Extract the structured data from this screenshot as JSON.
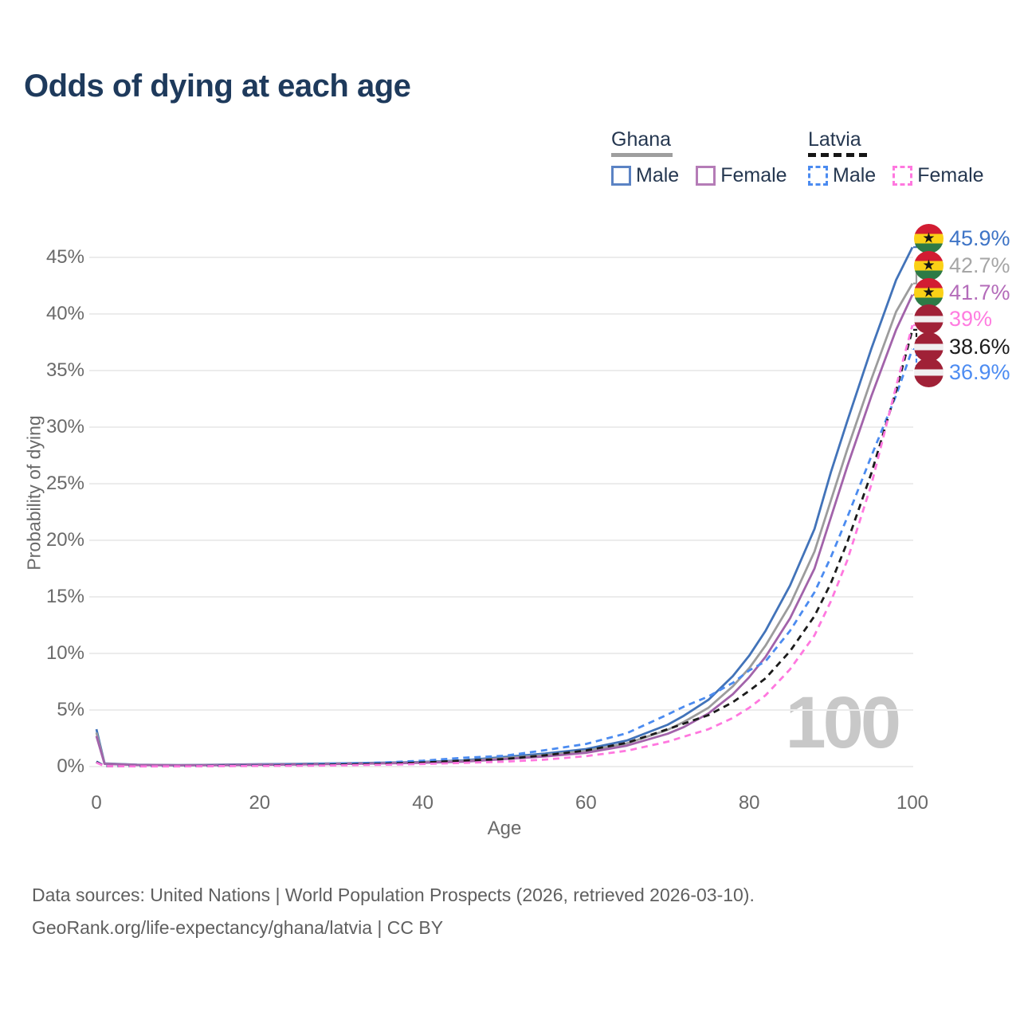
{
  "title": "Odds of dying at each age",
  "legend": {
    "groups": [
      {
        "country": "Ghana",
        "line_style": "solid",
        "underline_color": "#9e9e9e",
        "items": [
          {
            "label": "Male",
            "color": "#5b83c4"
          },
          {
            "label": "Female",
            "color": "#b57cb7"
          }
        ]
      },
      {
        "country": "Latvia",
        "line_style": "dashed",
        "underline_color": "#161616",
        "items": [
          {
            "label": "Male",
            "color": "#4b8bf0"
          },
          {
            "label": "Female",
            "color": "#ff78df"
          }
        ]
      }
    ]
  },
  "chart_data": {
    "type": "line",
    "title": "Odds of dying at each age",
    "xlabel": "Age",
    "ylabel": "Probability of dying",
    "xlim": [
      0,
      100
    ],
    "ylim": [
      0,
      45
    ],
    "grid": "horizontal",
    "legend_position": "top-right",
    "x_ticks": [
      "0",
      "20",
      "40",
      "60",
      "80",
      "100"
    ],
    "x_tick_values": [
      0,
      20,
      40,
      60,
      80,
      100
    ],
    "y_ticks": [
      "0%",
      "5%",
      "10%",
      "15%",
      "20%",
      "25%",
      "30%",
      "35%",
      "40%",
      "45%"
    ],
    "y_tick_values": [
      0,
      5,
      10,
      15,
      20,
      25,
      30,
      35,
      40,
      45
    ],
    "age_indicator": "100",
    "x": [
      0,
      1,
      5,
      10,
      15,
      20,
      25,
      30,
      35,
      40,
      45,
      50,
      55,
      60,
      65,
      70,
      72,
      75,
      78,
      80,
      82,
      85,
      88,
      90,
      92,
      95,
      98,
      100
    ],
    "series": [
      {
        "name": "Ghana male",
        "country": "Ghana",
        "sex": "male",
        "color": "#4273b9",
        "dash": false,
        "values": [
          3.3,
          0.28,
          0.16,
          0.13,
          0.16,
          0.21,
          0.25,
          0.29,
          0.34,
          0.41,
          0.55,
          0.85,
          1.15,
          1.55,
          2.3,
          3.7,
          4.5,
          5.9,
          8.0,
          9.8,
          12.0,
          16.0,
          21.0,
          26.0,
          30.5,
          37.0,
          43.0,
          45.9
        ]
      },
      {
        "name": "Ghana both sexes",
        "country": "Ghana",
        "sex": "both",
        "color": "#9c9c9c",
        "dash": false,
        "values": [
          3.0,
          0.26,
          0.15,
          0.12,
          0.14,
          0.18,
          0.22,
          0.26,
          0.31,
          0.37,
          0.49,
          0.75,
          1.02,
          1.38,
          2.05,
          3.25,
          3.95,
          5.2,
          7.1,
          8.7,
          10.7,
          14.3,
          19.0,
          23.5,
          28.0,
          34.3,
          40.2,
          42.7
        ]
      },
      {
        "name": "Ghana female",
        "country": "Ghana",
        "sex": "female",
        "color": "#a263aa",
        "dash": false,
        "values": [
          2.7,
          0.24,
          0.14,
          0.11,
          0.13,
          0.16,
          0.19,
          0.23,
          0.28,
          0.34,
          0.44,
          0.66,
          0.9,
          1.22,
          1.85,
          2.9,
          3.5,
          4.7,
          6.4,
          7.9,
          9.7,
          13.1,
          17.5,
          22.0,
          26.5,
          32.8,
          38.6,
          41.7
        ]
      },
      {
        "name": "Latvia male",
        "country": "Latvia",
        "sex": "male",
        "color": "#4b8bf0",
        "dash": true,
        "values": [
          0.45,
          0.05,
          0.03,
          0.03,
          0.08,
          0.13,
          0.19,
          0.26,
          0.36,
          0.52,
          0.78,
          0.95,
          1.45,
          2.0,
          2.95,
          4.6,
          5.3,
          6.2,
          7.4,
          8.5,
          9.3,
          12.0,
          15.4,
          18.5,
          22.0,
          27.5,
          32.8,
          36.9
        ]
      },
      {
        "name": "Latvia both sexes",
        "country": "Latvia",
        "sex": "both",
        "color": "#1b1b1b",
        "dash": true,
        "values": [
          0.4,
          0.045,
          0.025,
          0.025,
          0.06,
          0.09,
          0.13,
          0.18,
          0.25,
          0.36,
          0.53,
          0.67,
          1.0,
          1.42,
          2.1,
          3.3,
          3.8,
          4.55,
          5.7,
          6.7,
          7.8,
          10.2,
          13.3,
          16.2,
          19.8,
          26.0,
          33.2,
          38.6
        ]
      },
      {
        "name": "Latvia female",
        "country": "Latvia",
        "sex": "female",
        "color": "#ff78df",
        "dash": true,
        "values": [
          0.35,
          0.04,
          0.02,
          0.02,
          0.045,
          0.06,
          0.08,
          0.11,
          0.16,
          0.23,
          0.33,
          0.44,
          0.62,
          0.92,
          1.4,
          2.2,
          2.65,
          3.3,
          4.3,
          5.2,
          6.3,
          8.6,
          11.6,
          14.6,
          18.2,
          25.0,
          33.6,
          39.0
        ]
      }
    ],
    "end_labels": [
      {
        "text": "45.9%",
        "color": "#3e74c6",
        "flag": "ghana",
        "series_index": 0
      },
      {
        "text": "42.7%",
        "color": "#a6a6a6",
        "flag": "ghana",
        "series_index": 1
      },
      {
        "text": "41.7%",
        "color": "#b46cba",
        "flag": "ghana",
        "series_index": 2
      },
      {
        "text": "39%",
        "color": "#ff7ce0",
        "flag": "latvia",
        "series_index": 5
      },
      {
        "text": "38.6%",
        "color": "#1c1c1c",
        "flag": "latvia",
        "series_index": 4
      },
      {
        "text": "36.9%",
        "color": "#4d8cf2",
        "flag": "latvia",
        "series_index": 3
      }
    ]
  },
  "footer": {
    "line1": "Data sources: United Nations | World Population Prospects (2026, retrieved 2026-03-10).",
    "line2": "GeoRank.org/life-expectancy/ghana/latvia | CC BY"
  }
}
